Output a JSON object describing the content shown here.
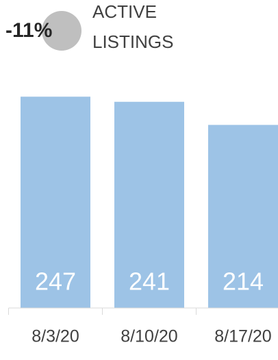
{
  "chart_data": {
    "type": "bar",
    "change_label": "-11%",
    "title_lines": [
      "ACTIVE",
      "LISTINGS"
    ],
    "categories": [
      "8/3/20",
      "8/10/20",
      "8/17/20"
    ],
    "values": [
      247,
      241,
      214
    ],
    "color": "#9dc3e6",
    "ylim": [
      0,
      300
    ]
  }
}
